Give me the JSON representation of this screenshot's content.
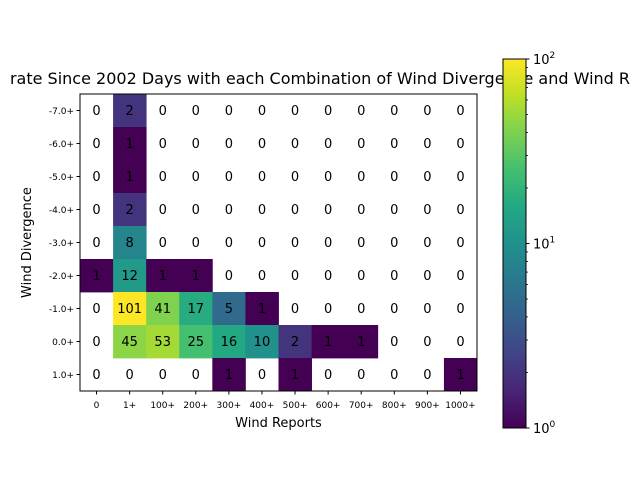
{
  "chart_data": {
    "type": "heatmap",
    "title": "rate Since 2002 Days with each Combination of Wind Divergence and Wind R",
    "xlabel": "Wind Reports",
    "ylabel": "Wind Divergence",
    "x_categories": [
      "0",
      "1+",
      "100+",
      "200+",
      "300+",
      "400+",
      "500+",
      "600+",
      "700+",
      "800+",
      "900+",
      "1000+"
    ],
    "y_categories": [
      "-7.0+",
      "-6.0+",
      "-5.0+",
      "-4.0+",
      "-3.0+",
      "-2.0+",
      "-1.0+",
      "0.0+",
      "1.0+"
    ],
    "values": [
      [
        0,
        2,
        0,
        0,
        0,
        0,
        0,
        0,
        0,
        0,
        0,
        0
      ],
      [
        0,
        1,
        0,
        0,
        0,
        0,
        0,
        0,
        0,
        0,
        0,
        0
      ],
      [
        0,
        1,
        0,
        0,
        0,
        0,
        0,
        0,
        0,
        0,
        0,
        0
      ],
      [
        0,
        2,
        0,
        0,
        0,
        0,
        0,
        0,
        0,
        0,
        0,
        0
      ],
      [
        0,
        8,
        0,
        0,
        0,
        0,
        0,
        0,
        0,
        0,
        0,
        0
      ],
      [
        1,
        12,
        1,
        1,
        0,
        0,
        0,
        0,
        0,
        0,
        0,
        0
      ],
      [
        0,
        101,
        41,
        17,
        5,
        1,
        0,
        0,
        0,
        0,
        0,
        0
      ],
      [
        0,
        45,
        53,
        25,
        16,
        10,
        2,
        1,
        1,
        0,
        0,
        0
      ],
      [
        0,
        0,
        0,
        0,
        1,
        0,
        1,
        0,
        0,
        0,
        0,
        1
      ]
    ],
    "colorbar": {
      "scale": "log",
      "range": [
        1,
        100
      ],
      "colormap": "viridis",
      "tick_labels": [
        {
          "value": 1,
          "base": "10",
          "exp": "0"
        },
        {
          "value": 10,
          "base": "10",
          "exp": "1"
        },
        {
          "value": 100,
          "base": "10",
          "exp": "2"
        }
      ]
    },
    "zero_cells": "blank",
    "grid": false
  }
}
